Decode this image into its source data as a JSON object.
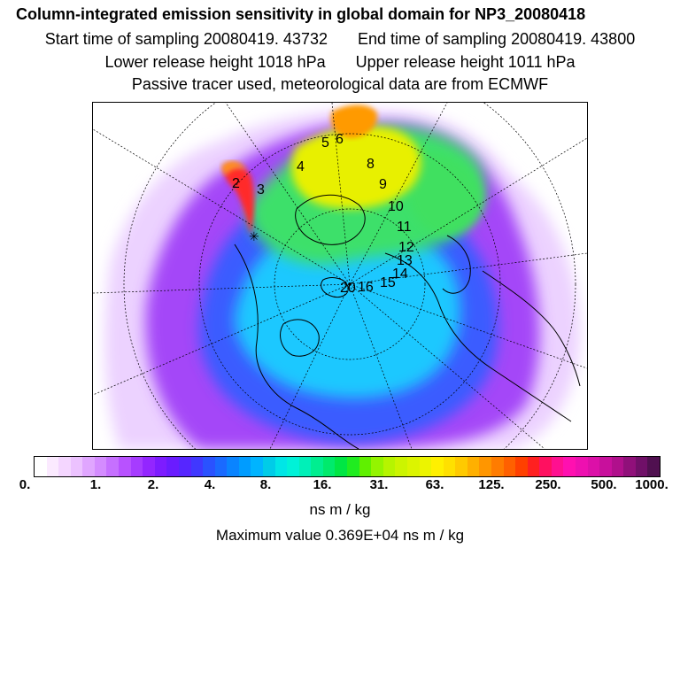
{
  "header": {
    "title": "Column-integrated emission sensitivity in global domain for NP3_20080418",
    "start_time": "Start time of sampling 20080419. 43732",
    "end_time": "End time of sampling 20080419. 43800",
    "lower_release": "Lower release height 1018 hPa",
    "upper_release": "Upper release height 1011 hPa",
    "tracer_info": "Passive tracer used, meteorological data are from ECMWF"
  },
  "map": {
    "projection": "north-polar-stereographic",
    "release_markers": [
      "2",
      "3",
      "4",
      "5",
      "6",
      "8",
      "9",
      "10",
      "11",
      "12",
      "13",
      "14",
      "15",
      "16",
      "20"
    ],
    "colors": {
      "background": "#ffffff",
      "low": "#ead0ff",
      "violet": "#9a3cf6",
      "blue": "#2a60ff",
      "cyan": "#18d8ff",
      "green": "#38e060",
      "yellow": "#ecf000",
      "orange": "#ff8a00",
      "red": "#ff1a1a",
      "coast": "#000000"
    }
  },
  "colorbar": {
    "tick_labels": [
      "0.",
      "1.",
      "2.",
      "4.",
      "8.",
      "16.",
      "31.",
      "63.",
      "125.",
      "250.",
      "500.",
      "1000."
    ],
    "colors": [
      "#ffffff",
      "#fbeaff",
      "#f4d6ff",
      "#ecc2ff",
      "#e0a6ff",
      "#d48cff",
      "#c670ff",
      "#b852ff",
      "#a63cff",
      "#9326ff",
      "#7d1cff",
      "#6a1cff",
      "#5626ff",
      "#4038ff",
      "#2a52ff",
      "#1a6aff",
      "#0a84ff",
      "#009cff",
      "#00b4ff",
      "#00cce8",
      "#00e6e6",
      "#00f2d8",
      "#00f0b8",
      "#00ee90",
      "#00ea6c",
      "#00e644",
      "#20ec20",
      "#60f000",
      "#94f400",
      "#b6f400",
      "#ccf400",
      "#dcf400",
      "#ecf400",
      "#fff000",
      "#ffe000",
      "#ffca00",
      "#ffb000",
      "#ff9600",
      "#ff7c00",
      "#ff6000",
      "#ff4000",
      "#ff2020",
      "#ff1060",
      "#ff1090",
      "#ff10b0",
      "#ee10b0",
      "#dc10a8",
      "#c8109c",
      "#b0108c",
      "#90107a",
      "#701068",
      "#501050"
    ],
    "units": "ns m / kg",
    "maximum_value": "Maximum value  0.369E+04 ns m / kg"
  }
}
